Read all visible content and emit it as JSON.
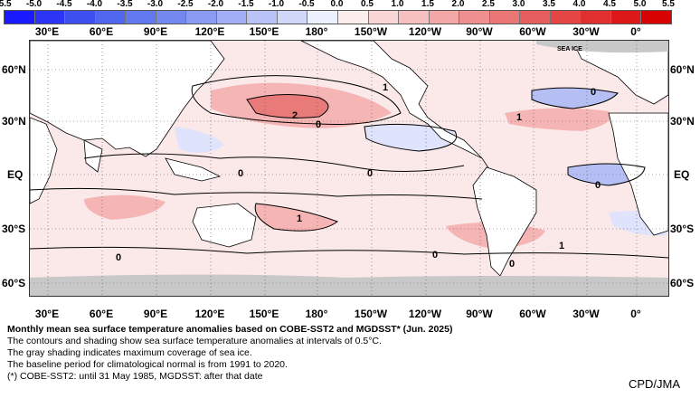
{
  "colorbar": {
    "ticks": [
      "-5.5",
      "-5.0",
      "-4.5",
      "-4.0",
      "-3.5",
      "-3.0",
      "-2.5",
      "-2.0",
      "-1.5",
      "-1.0",
      "-0.5",
      "0.0",
      "0.5",
      "1.0",
      "1.5",
      "2.0",
      "2.5",
      "3.0",
      "3.5",
      "4.0",
      "4.5",
      "5.0",
      "5.5"
    ],
    "colors": [
      "#1a1aff",
      "#2d35f5",
      "#3e4ff0",
      "#5066ef",
      "#6279ef",
      "#7489f0",
      "#8b9bf2",
      "#a2aef5",
      "#bac3f7",
      "#d2d8fa",
      "#edf0fd",
      "#fdeeee",
      "#fad6d6",
      "#f7c0c0",
      "#f3a7a7",
      "#ef8f8f",
      "#eb7676",
      "#e75e5e",
      "#e44646",
      "#e02f2f",
      "#dc1818",
      "#d80202"
    ]
  },
  "map": {
    "lon_labels": [
      "30°E",
      "60°E",
      "90°E",
      "120°E",
      "150°E",
      "180°",
      "150°W",
      "120°W",
      "90°W",
      "60°W",
      "30°W",
      "0°"
    ],
    "lat_labels_left": [
      "60°N",
      "30°N",
      "EQ",
      "30°S",
      "60°S"
    ],
    "lat_labels_right": [
      "60°N",
      "30°N",
      "EQ",
      "30°S",
      "60°S"
    ],
    "annotations": [
      "2",
      "1",
      "0",
      "1",
      "0",
      "0",
      "1",
      "0",
      "0",
      "0",
      "1",
      "0",
      "0"
    ],
    "sea_ice_label": "SEA ICE",
    "colors": {
      "land": "#ffffff",
      "ice": "#c8c8c8",
      "warm_light": "#fbe3e3",
      "warm_mid": "#f5b5b5",
      "warm_strong": "#e87a7a",
      "cool_light": "#dfe3fb",
      "cool_mid": "#b6bff3",
      "contour": "#000000"
    }
  },
  "caption": {
    "title": "Monthly mean sea surface temperature anomalies based on COBE-SST2 and MGDSST* (Jun. 2025)",
    "lines": [
      "The contours and shading show sea surface temperature anomalies at intervals of 0.5°C.",
      "The gray shading indicates maximum coverage of sea ice.",
      "The baseline period for climatological normal is from 1991 to 2020.",
      "(*) COBE-SST2: until 31 May 1985, MGDSST: after that date"
    ]
  },
  "credit": "CPD/JMA"
}
